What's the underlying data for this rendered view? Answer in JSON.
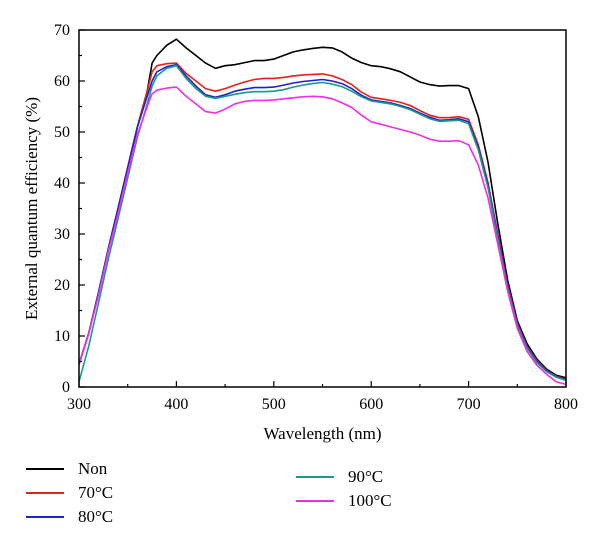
{
  "chart_data": {
    "type": "line",
    "title": "",
    "xlabel": "Wavelength (nm)",
    "ylabel": "External quantum efficiency (%)",
    "xlim": [
      300,
      800
    ],
    "ylim": [
      0,
      70
    ],
    "x_ticks": [
      "300",
      "400",
      "500",
      "600",
      "700",
      "800"
    ],
    "y_ticks": [
      "0",
      "10",
      "20",
      "30",
      "40",
      "50",
      "60",
      "70"
    ],
    "grid": false,
    "legend_position": "bottom",
    "x": [
      300,
      310,
      320,
      330,
      340,
      350,
      360,
      370,
      375,
      380,
      390,
      400,
      410,
      420,
      430,
      440,
      450,
      460,
      470,
      480,
      490,
      500,
      510,
      520,
      530,
      540,
      550,
      560,
      570,
      580,
      590,
      600,
      610,
      620,
      630,
      640,
      650,
      660,
      670,
      680,
      690,
      700,
      710,
      720,
      730,
      740,
      750,
      760,
      770,
      780,
      790,
      800
    ],
    "series": [
      {
        "name": "Non",
        "color": "#000000",
        "values": [
          4.5,
          10.5,
          18.5,
          27,
          35,
          43,
          51,
          58,
          63.5,
          65,
          67,
          68.2,
          66.5,
          65,
          63.5,
          62.5,
          63,
          63.2,
          63.6,
          64,
          64,
          64.3,
          65,
          65.7,
          66.1,
          66.4,
          66.6,
          66.5,
          65.7,
          64.5,
          63.6,
          63,
          62.8,
          62.4,
          61.8,
          60.8,
          59.8,
          59.3,
          59,
          59.1,
          59.1,
          58.5,
          53,
          44,
          32,
          21,
          13,
          8.5,
          5.5,
          3.5,
          2.3,
          1.8
        ]
      },
      {
        "name": "70°C",
        "color": "#e8201c",
        "values": [
          4.5,
          10.5,
          18.5,
          27,
          35,
          43,
          51,
          58,
          61.8,
          63,
          63.4,
          63.5,
          61.5,
          60,
          58.5,
          58,
          58.5,
          59.2,
          59.8,
          60.3,
          60.5,
          60.5,
          60.7,
          61,
          61.2,
          61.3,
          61.4,
          61,
          60.3,
          59.3,
          57.8,
          56.8,
          56.5,
          56.2,
          55.8,
          55.2,
          54.2,
          53.3,
          52.8,
          52.8,
          53,
          52.5,
          47.5,
          40,
          30,
          20,
          12.5,
          8,
          5.2,
          3.3,
          2.1,
          1.5
        ]
      },
      {
        "name": "80°C",
        "color": "#1f22cc",
        "values": [
          4.5,
          10.5,
          18.5,
          27,
          35,
          43,
          51,
          57,
          60,
          61.8,
          62.8,
          63.2,
          61,
          59,
          57.3,
          56.8,
          57.3,
          58,
          58.4,
          58.7,
          58.7,
          58.8,
          59.2,
          59.6,
          59.9,
          60.1,
          60.3,
          60,
          59.5,
          58.5,
          57.2,
          56.3,
          56,
          55.7,
          55.2,
          54.6,
          53.7,
          52.9,
          52.3,
          52.4,
          52.6,
          52,
          47,
          39.5,
          29.5,
          19.5,
          12.2,
          7.8,
          5,
          3.2,
          2,
          1.4
        ]
      },
      {
        "name": "90°C",
        "color": "#1a9a8a",
        "values": [
          1,
          8,
          16.5,
          25,
          33,
          41,
          49,
          55.5,
          59,
          61,
          62.5,
          63,
          60.5,
          58.5,
          57,
          56.6,
          57,
          57.4,
          57.7,
          57.9,
          57.9,
          58,
          58.3,
          58.8,
          59.2,
          59.5,
          59.7,
          59.4,
          58.9,
          58,
          56.9,
          56.1,
          55.8,
          55.5,
          55,
          54.4,
          53.5,
          52.6,
          52.1,
          52.2,
          52.3,
          51.6,
          46.5,
          39,
          29,
          19.3,
          12,
          7.6,
          4.8,
          3,
          1.9,
          1.3
        ]
      },
      {
        "name": "100°C",
        "color": "#ee2ee8",
        "values": [
          4.5,
          10.5,
          18,
          26.5,
          34,
          42,
          49.5,
          55,
          57.5,
          58.2,
          58.6,
          58.8,
          57,
          55.5,
          54,
          53.7,
          54.5,
          55.5,
          56,
          56.2,
          56.2,
          56.3,
          56.5,
          56.7,
          56.9,
          57,
          56.9,
          56.5,
          55.7,
          54.8,
          53.3,
          52,
          51.5,
          51,
          50.5,
          50,
          49.4,
          48.6,
          48.2,
          48.2,
          48.3,
          47.5,
          43.5,
          37,
          28,
          18.8,
          11.5,
          7,
          4.3,
          2.5,
          1,
          0.5
        ]
      }
    ]
  }
}
